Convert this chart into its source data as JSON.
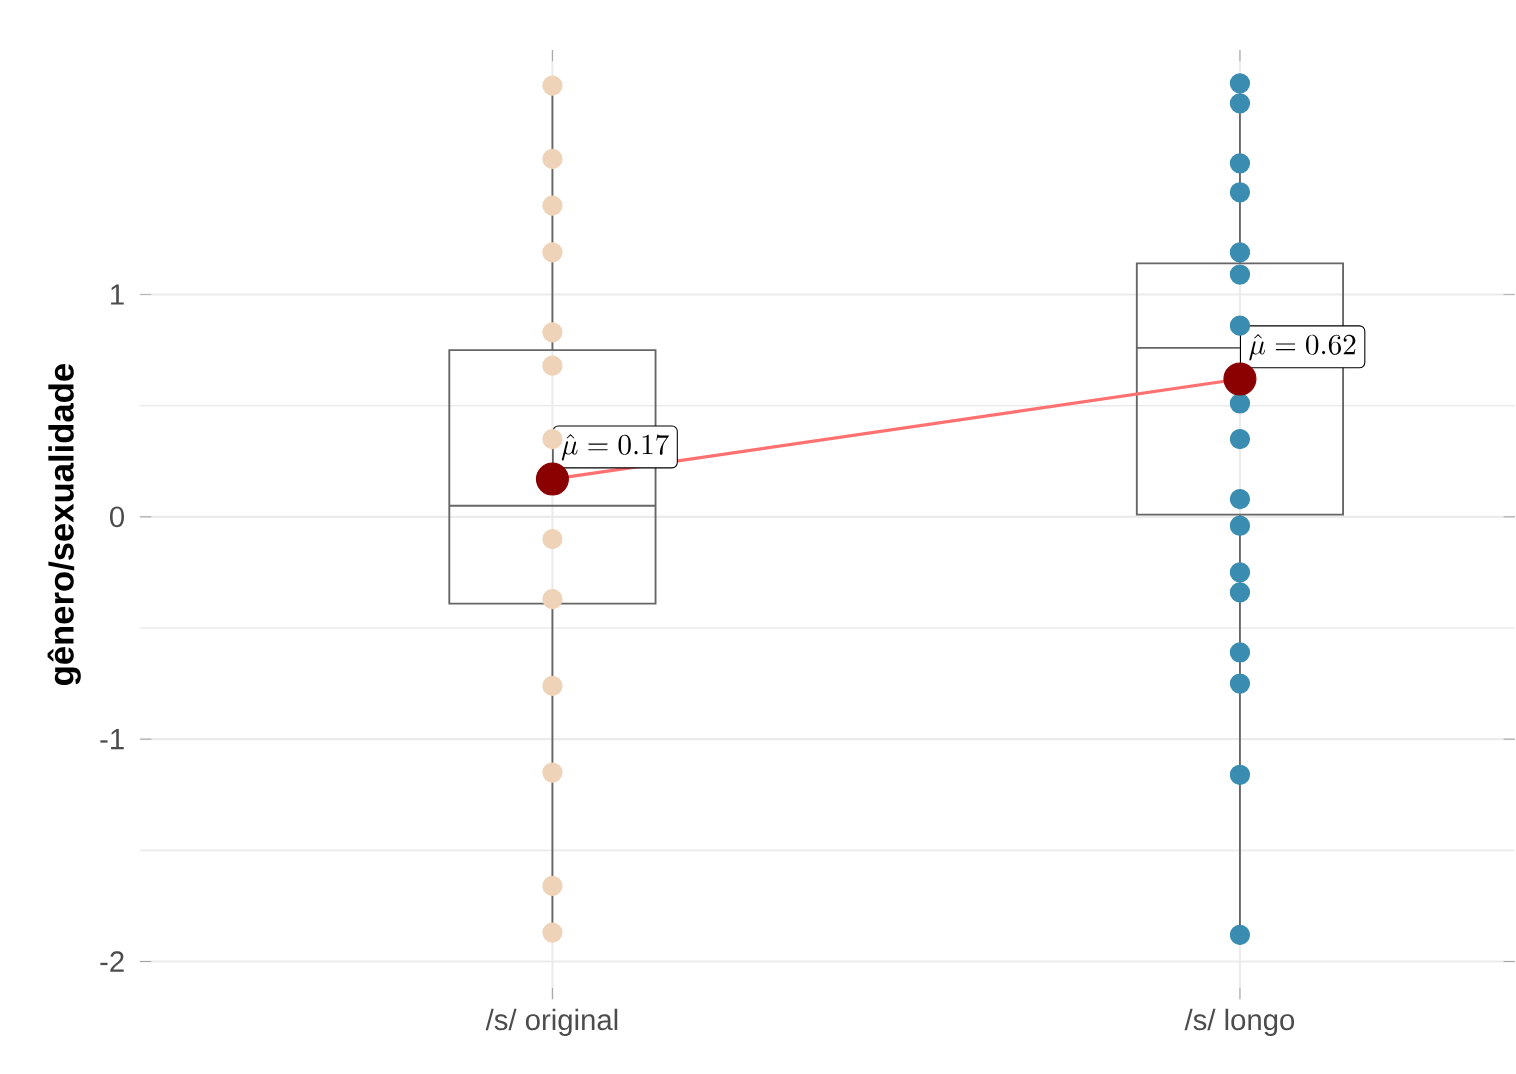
{
  "chart_data": {
    "type": "box",
    "ylabel": "gênero/sexualidade",
    "categories": [
      "/s/ original",
      "/s/ longo"
    ],
    "boxes": [
      {
        "low": -1.88,
        "q1": -0.39,
        "median": 0.05,
        "q3": 0.75,
        "high": 1.95
      },
      {
        "low": -1.88,
        "q1": 0.01,
        "median": 0.76,
        "q3": 1.14,
        "high": 1.95
      }
    ],
    "series": [
      {
        "type": "scatter",
        "color": "#efd3b8",
        "x": [
          "/s/ original",
          "/s/ original",
          "/s/ original",
          "/s/ original",
          "/s/ original",
          "/s/ original",
          "/s/ original",
          "/s/ original",
          "/s/ original",
          "/s/ original",
          "/s/ original",
          "/s/ original",
          "/s/ original"
        ],
        "values": [
          1.94,
          1.61,
          1.4,
          1.19,
          0.83,
          0.68,
          0.35,
          -0.1,
          -0.37,
          -0.76,
          -1.15,
          -1.66,
          -1.87
        ]
      },
      {
        "type": "scatter",
        "color": "#3a8db0",
        "x": [
          "/s/ longo",
          "/s/ longo",
          "/s/ longo",
          "/s/ longo",
          "/s/ longo",
          "/s/ longo",
          "/s/ longo",
          "/s/ longo",
          "/s/ longo",
          "/s/ longo",
          "/s/ longo",
          "/s/ longo",
          "/s/ longo",
          "/s/ longo",
          "/s/ longo",
          "/s/ longo",
          "/s/ longo"
        ],
        "values": [
          1.95,
          1.86,
          1.59,
          1.46,
          1.19,
          1.09,
          0.86,
          0.51,
          0.35,
          0.08,
          -0.04,
          -0.25,
          -0.34,
          -0.61,
          -0.75,
          -1.16,
          -1.88
        ]
      },
      {
        "type": "line",
        "color": "#ff7070",
        "x": [
          "/s/ original",
          "/s/ longo"
        ],
        "values": [
          0.17,
          0.62
        ]
      },
      {
        "type": "scatter",
        "color": "#8b0000",
        "x": [
          "/s/ original",
          "/s/ longo"
        ],
        "values": [
          0.17,
          0.62
        ]
      }
    ],
    "annotations": [
      {
        "text": "\\hat{\\mu}=0.17",
        "x": "/s/ original",
        "y": 0.17
      },
      {
        "text": "\\hat{\\mu}=0.62",
        "x": "/s/ longo",
        "y": 0.62
      }
    ],
    "ylim": [
      -2.17,
      2.1
    ],
    "yticks": [
      -2,
      -1,
      0,
      1
    ],
    "grid": true
  }
}
